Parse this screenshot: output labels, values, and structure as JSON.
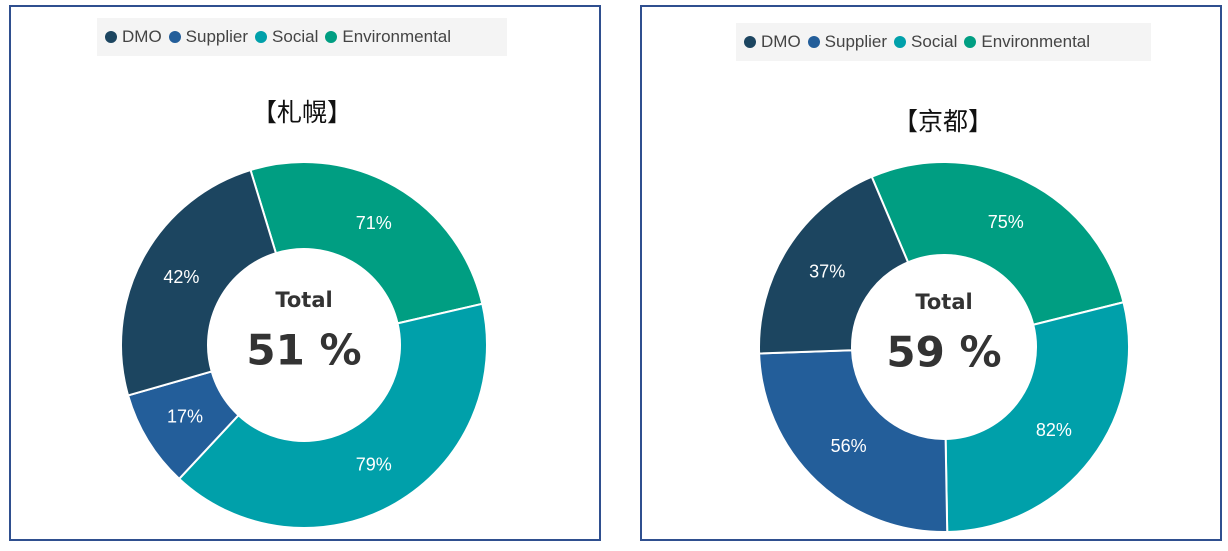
{
  "legend": [
    {
      "label": "DMO",
      "color": "#1c4560"
    },
    {
      "label": "Supplier",
      "color": "#235e9a"
    },
    {
      "label": "Social",
      "color": "#00a0aa"
    },
    {
      "label": "Environmental",
      "color": "#009e82"
    }
  ],
  "chart_data": [
    {
      "type": "pie",
      "title": "【札幌】",
      "center_label": "Total",
      "center_value": "51 %",
      "slices": [
        {
          "name": "Environmental",
          "label": "71%",
          "sweep_deg": 94,
          "color": "#009e82"
        },
        {
          "name": "Social",
          "label": "79%",
          "sweep_deg": 146,
          "color": "#00a0aa"
        },
        {
          "name": "Supplier",
          "label": "17%",
          "sweep_deg": 31,
          "color": "#235e9a"
        },
        {
          "name": "DMO",
          "label": "42%",
          "sweep_deg": 89,
          "color": "#1c4560"
        }
      ],
      "start_angle_deg": -17
    },
    {
      "type": "pie",
      "title": "【京都】",
      "center_label": "Total",
      "center_value": "59 %",
      "slices": [
        {
          "name": "Environmental",
          "label": "75%",
          "sweep_deg": 99,
          "color": "#009e82"
        },
        {
          "name": "Social",
          "label": "82%",
          "sweep_deg": 103,
          "color": "#00a0aa"
        },
        {
          "name": "Supplier",
          "label": "56%",
          "sweep_deg": 89,
          "color": "#235e9a"
        },
        {
          "name": "DMO",
          "label": "37%",
          "sweep_deg": 69,
          "color": "#1c4560"
        }
      ],
      "start_angle_deg": -23
    }
  ]
}
